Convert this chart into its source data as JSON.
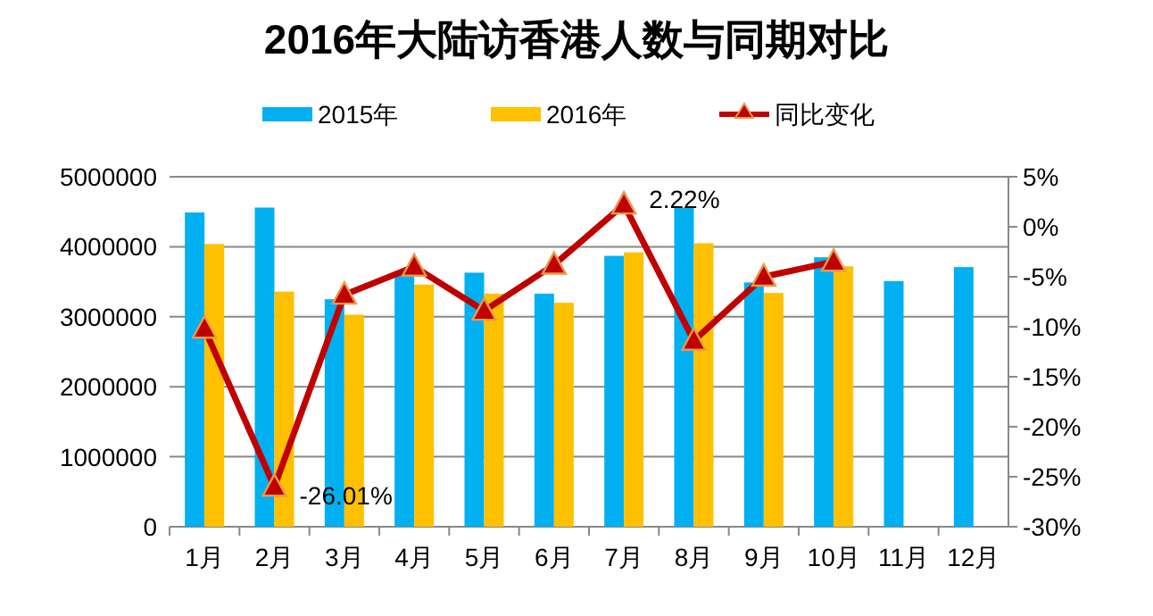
{
  "chart_data": {
    "type": "bar",
    "title": "2016年大陆访香港人数与同期对比",
    "categories": [
      "1月",
      "2月",
      "3月",
      "4月",
      "5月",
      "6月",
      "7月",
      "8月",
      "9月",
      "10月",
      "11月",
      "12月"
    ],
    "series": [
      {
        "name": "2015年",
        "color": "#00b0f0",
        "values": [
          4490000,
          4560000,
          3250000,
          3630000,
          3630000,
          3330000,
          3870000,
          4560000,
          3490000,
          3850000,
          3510000,
          3710000
        ]
      },
      {
        "name": "2016年",
        "color": "#ffc000",
        "values": [
          4040000,
          3360000,
          3030000,
          3460000,
          3330000,
          3200000,
          3920000,
          4050000,
          3340000,
          3720000,
          null,
          null
        ]
      },
      {
        "name": "同比变化",
        "type": "line",
        "axis": "y2",
        "color": "#c00000",
        "marker": "triangle",
        "values": [
          -10.2,
          -26.01,
          -6.8,
          -4.0,
          -8.4,
          -3.8,
          2.22,
          -11.4,
          -5.0,
          -3.5,
          null,
          null
        ],
        "value_labels": [
          null,
          "-26.01%",
          null,
          null,
          null,
          null,
          "2.22%",
          null,
          null,
          null,
          null,
          null
        ]
      }
    ],
    "ylim": [
      0,
      5000000
    ],
    "yticks": [
      0,
      1000000,
      2000000,
      3000000,
      4000000,
      5000000
    ],
    "y2lim": [
      -30,
      5
    ],
    "y2ticks": [
      {
        "value": -30,
        "label": "-30%"
      },
      {
        "value": -25,
        "label": "-25%"
      },
      {
        "value": -20,
        "label": "-20%"
      },
      {
        "value": -15,
        "label": "-15%"
      },
      {
        "value": -10,
        "label": "-10%"
      },
      {
        "value": -5,
        "label": "-5%"
      },
      {
        "value": 0,
        "label": "0%"
      },
      {
        "value": 5,
        "label": "5%"
      }
    ],
    "grid": "y",
    "legend": "top"
  }
}
